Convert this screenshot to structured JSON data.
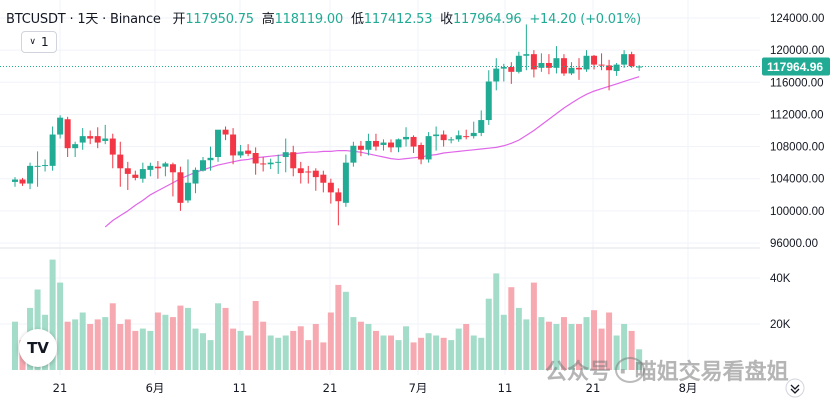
{
  "header": {
    "symbol": "BTCUSDT",
    "sep1": "·",
    "interval": "1天",
    "sep2": "·",
    "exchange": "Binance",
    "open_label": "开",
    "open": "117950.75",
    "high_label": "高",
    "high": "118119.00",
    "low_label": "低",
    "low": "117412.53",
    "close_label": "收",
    "close": "117964.96",
    "change": "+14.20",
    "change_pct": "(+0.01%)"
  },
  "interval_button": {
    "chevron": "∨",
    "label": "1"
  },
  "logo": {
    "text": "TV"
  },
  "watermark": {
    "text": "公众号 · 喵姐交易看盘姐"
  },
  "colors": {
    "up": "#22ab94",
    "down": "#f23645",
    "ma": "#e066e8",
    "vol_up": "#a3dcc9",
    "vol_down": "#f7a9b1",
    "price_badge": "#22ab94"
  },
  "chart_data": {
    "type": "candlestick",
    "price_axis": {
      "min": 96000,
      "max": 124000,
      "ticks": [
        "124000.00",
        "120000.00",
        "116000.00",
        "112000.00",
        "108000.00",
        "104000.00",
        "100000.00",
        "96000.00"
      ]
    },
    "volume_axis": {
      "ticks": [
        "40K",
        "20K"
      ],
      "max": 50000
    },
    "last_price_label": "117964.96",
    "x_labels": [
      "21",
      "6月",
      "11",
      "21",
      "7月",
      "11",
      "21",
      "8月"
    ],
    "ma_series": [
      98000,
      98800,
      99400,
      100000,
      100700,
      101300,
      102000,
      102500,
      103000,
      103500,
      104000,
      104400,
      104800,
      105100,
      105400,
      105700,
      105900,
      106100,
      106300,
      106400,
      106600,
      106700,
      106800,
      106900,
      107000,
      107100,
      107200,
      107300,
      107300,
      107400,
      107400,
      107500,
      107500,
      107400,
      107300,
      107100,
      106900,
      106700,
      106500,
      106400,
      106500,
      106600,
      106700,
      106900,
      107000,
      107200,
      107300,
      107400,
      107500,
      107600,
      107700,
      107800,
      107900,
      108100,
      108400,
      108800,
      109400,
      110000,
      110700,
      111400,
      112100,
      112800,
      113400,
      114000,
      114500,
      114900,
      115200,
      115500,
      115800,
      116100,
      116400,
      116700
    ],
    "candles": [
      [
        103600,
        104200,
        103000,
        103900,
        21000
      ],
      [
        103900,
        104100,
        103100,
        103400,
        13000
      ],
      [
        103400,
        106000,
        102700,
        105600,
        27000
      ],
      [
        105600,
        107400,
        103000,
        105600,
        35000
      ],
      [
        105600,
        106400,
        104900,
        105700,
        24000
      ],
      [
        105600,
        110500,
        105000,
        109500,
        48000
      ],
      [
        109500,
        111900,
        109000,
        111600,
        38000
      ],
      [
        111400,
        111700,
        106700,
        107800,
        21000
      ],
      [
        107800,
        108600,
        106700,
        108300,
        22000
      ],
      [
        108500,
        110300,
        107600,
        109300,
        25000
      ],
      [
        109300,
        110000,
        108300,
        109000,
        20000
      ],
      [
        109300,
        110400,
        107800,
        108500,
        22000
      ],
      [
        108700,
        110700,
        108300,
        109000,
        23000
      ],
      [
        109000,
        109600,
        105300,
        107000,
        29000
      ],
      [
        107000,
        108600,
        103000,
        105300,
        20000
      ],
      [
        105300,
        106100,
        102600,
        104600,
        22000
      ],
      [
        104500,
        105000,
        103800,
        104100,
        17000
      ],
      [
        104000,
        106000,
        103500,
        105200,
        18000
      ],
      [
        105100,
        106000,
        104300,
        105600,
        17000
      ],
      [
        105500,
        106200,
        104000,
        105300,
        25000
      ],
      [
        105500,
        106100,
        104300,
        105900,
        24000
      ],
      [
        105800,
        106000,
        101800,
        104800,
        23000
      ],
      [
        104800,
        105500,
        100000,
        101000,
        28000
      ],
      [
        101300,
        106400,
        101000,
        103500,
        27000
      ],
      [
        103400,
        105400,
        102200,
        105100,
        18000
      ],
      [
        105000,
        106700,
        104900,
        106300,
        16000
      ],
      [
        106300,
        108000,
        105000,
        106600,
        13000
      ],
      [
        106700,
        110000,
        106100,
        110100,
        29000
      ],
      [
        110100,
        110500,
        108800,
        109500,
        27000
      ],
      [
        109500,
        110300,
        105800,
        106900,
        18000
      ],
      [
        106900,
        108200,
        106600,
        107400,
        17000
      ],
      [
        107500,
        108300,
        106800,
        107100,
        15000
      ],
      [
        107200,
        107900,
        104500,
        105900,
        30000
      ],
      [
        105900,
        106700,
        104900,
        105800,
        21000
      ],
      [
        105800,
        106500,
        105200,
        106000,
        15000
      ],
      [
        106000,
        107000,
        104600,
        106100,
        14000
      ],
      [
        106700,
        109000,
        104800,
        107300,
        15000
      ],
      [
        107300,
        108100,
        104300,
        105300,
        17000
      ],
      [
        105300,
        106100,
        103400,
        104700,
        19000
      ],
      [
        104900,
        105600,
        103400,
        104800,
        13000
      ],
      [
        105000,
        105300,
        102500,
        104200,
        20000
      ],
      [
        104500,
        105000,
        102300,
        103500,
        12000
      ],
      [
        103500,
        104000,
        100900,
        102300,
        25000
      ],
      [
        102300,
        102800,
        98200,
        101200,
        37000
      ],
      [
        101000,
        107000,
        100500,
        106000,
        34000
      ],
      [
        106000,
        108600,
        105500,
        108100,
        23000
      ],
      [
        108100,
        108700,
        106800,
        107600,
        21000
      ],
      [
        107600,
        109600,
        106900,
        108700,
        20000
      ],
      [
        108700,
        109600,
        107500,
        108000,
        17000
      ],
      [
        108200,
        108900,
        107500,
        108500,
        15000
      ],
      [
        108500,
        108900,
        107300,
        107900,
        15000
      ],
      [
        107900,
        109000,
        107300,
        108900,
        13000
      ],
      [
        108900,
        110400,
        108000,
        109200,
        19000
      ],
      [
        109200,
        109400,
        107200,
        108000,
        12000
      ],
      [
        108200,
        108500,
        105800,
        106400,
        14000
      ],
      [
        106400,
        109800,
        106000,
        109300,
        16000
      ],
      [
        109300,
        110500,
        107500,
        109500,
        15000
      ],
      [
        109500,
        110000,
        108000,
        108800,
        14000
      ],
      [
        108800,
        109200,
        108400,
        108900,
        13000
      ],
      [
        108900,
        110000,
        108600,
        109400,
        18000
      ],
      [
        109300,
        110100,
        108900,
        109200,
        20000
      ],
      [
        109300,
        111100,
        109000,
        109700,
        15000
      ],
      [
        109700,
        112500,
        109300,
        111300,
        14000
      ],
      [
        111300,
        117500,
        110700,
        116100,
        31000
      ],
      [
        116100,
        119000,
        115000,
        117700,
        42000
      ],
      [
        117700,
        118300,
        116100,
        117900,
        24000
      ],
      [
        117900,
        118500,
        115800,
        117300,
        36000
      ],
      [
        117300,
        119800,
        117100,
        119300,
        27000
      ],
      [
        119300,
        123200,
        117500,
        119500,
        22000
      ],
      [
        119500,
        120000,
        116600,
        117600,
        38000
      ],
      [
        117800,
        119600,
        117300,
        118400,
        23000
      ],
      [
        118400,
        119500,
        117000,
        117800,
        21000
      ],
      [
        117800,
        120500,
        117100,
        119000,
        20000
      ],
      [
        119000,
        119500,
        116800,
        117100,
        23000
      ],
      [
        117100,
        118500,
        116900,
        117800,
        20000
      ],
      [
        117800,
        119000,
        116300,
        117600,
        20000
      ],
      [
        117600,
        120000,
        117300,
        119300,
        23000
      ],
      [
        119300,
        119400,
        117600,
        118200,
        26000
      ],
      [
        118200,
        119600,
        117500,
        118100,
        18000
      ],
      [
        118100,
        118800,
        115000,
        117500,
        25000
      ],
      [
        117400,
        118400,
        116800,
        118200,
        15000
      ],
      [
        118200,
        120000,
        117800,
        119500,
        20000
      ],
      [
        119500,
        119800,
        117800,
        118000,
        17000
      ],
      [
        117950,
        118119,
        117412,
        117965,
        9000
      ]
    ]
  }
}
